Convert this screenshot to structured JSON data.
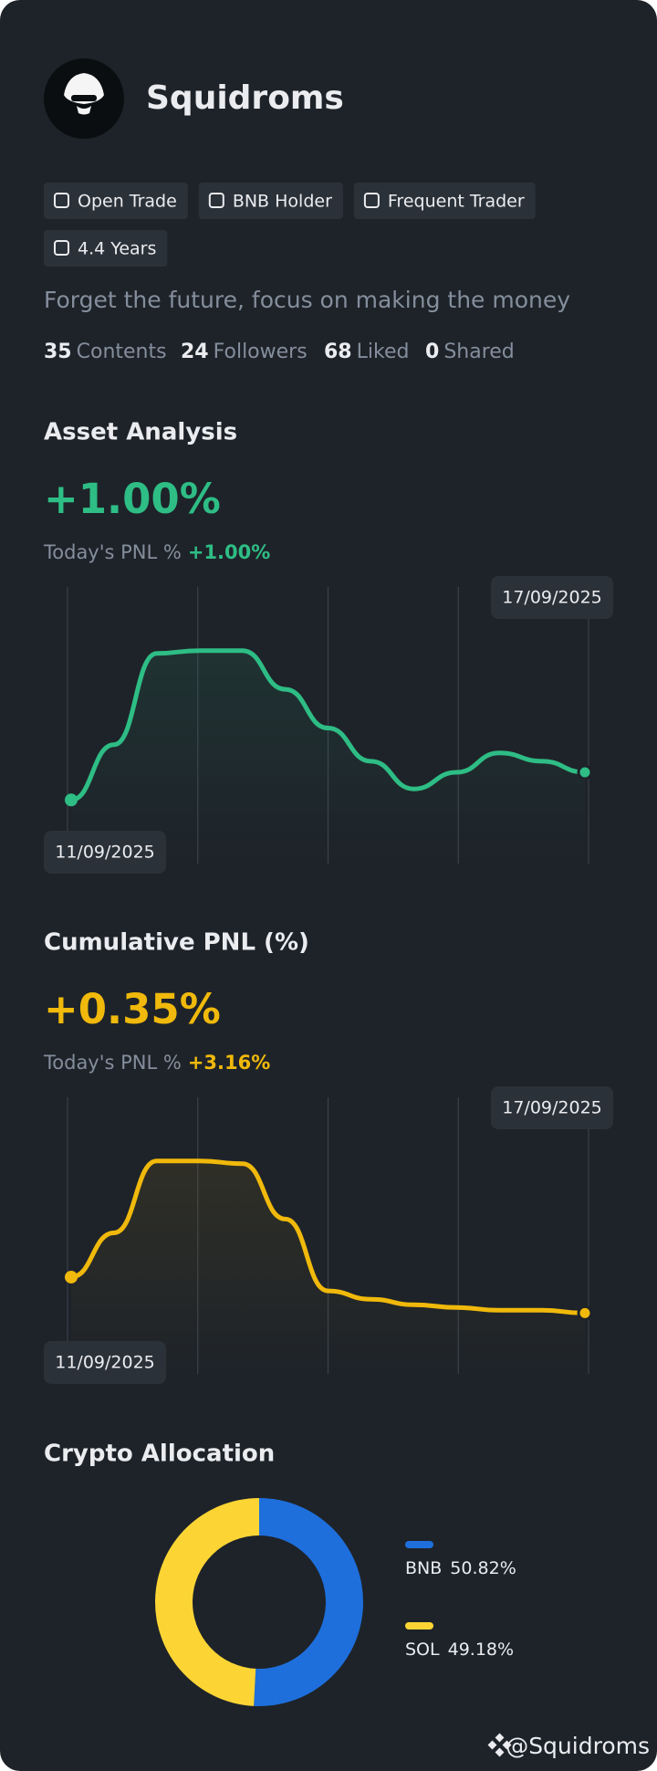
{
  "profile": {
    "name": "Squidroms",
    "badges": [
      "Open Trade",
      "BNB Holder",
      "Frequent Trader",
      "4.4 Years"
    ],
    "bio": "Forget the future, focus on making the money",
    "stats": [
      {
        "value": 35,
        "label": "Contents"
      },
      {
        "value": 24,
        "label": "Followers"
      },
      {
        "value": 68,
        "label": "Liked"
      },
      {
        "value": 0,
        "label": "Shared"
      }
    ]
  },
  "chart_data": [
    {
      "type": "line",
      "title": "Asset Analysis",
      "headline": "+1.00%",
      "pnl_label": "Today's PNL %",
      "pnl_value": "+1.00%",
      "categories": [
        "11/09/2025",
        null,
        null,
        null,
        null,
        null,
        null,
        null,
        null,
        null,
        null,
        null,
        "17/09/2025"
      ],
      "values": [
        23,
        43,
        76,
        77,
        77,
        63,
        49,
        37,
        27,
        33,
        40,
        37,
        33
      ],
      "color": "#2ebd85",
      "ylim": [
        0,
        100
      ]
    },
    {
      "type": "line",
      "title": "Cumulative PNL (%)",
      "headline": "+0.35%",
      "pnl_label": "Today's PNL %",
      "pnl_value": "+3.16%",
      "categories": [
        "11/09/2025",
        null,
        null,
        null,
        null,
        null,
        null,
        null,
        null,
        null,
        null,
        null,
        "17/09/2025"
      ],
      "values": [
        35,
        51,
        77,
        77,
        76,
        56,
        30,
        27,
        25,
        24,
        23,
        23,
        22
      ],
      "color": "#f0b90b",
      "ylim": [
        0,
        100
      ]
    },
    {
      "type": "donut",
      "title": "Crypto Allocation",
      "categories": [
        "BNB",
        "SOL"
      ],
      "values": [
        50.82,
        49.18
      ],
      "value_labels": [
        "50.82%",
        "49.18%"
      ],
      "colors": [
        "#1e6fdc",
        "#fcd535"
      ]
    }
  ],
  "footer": "@Squidroms"
}
